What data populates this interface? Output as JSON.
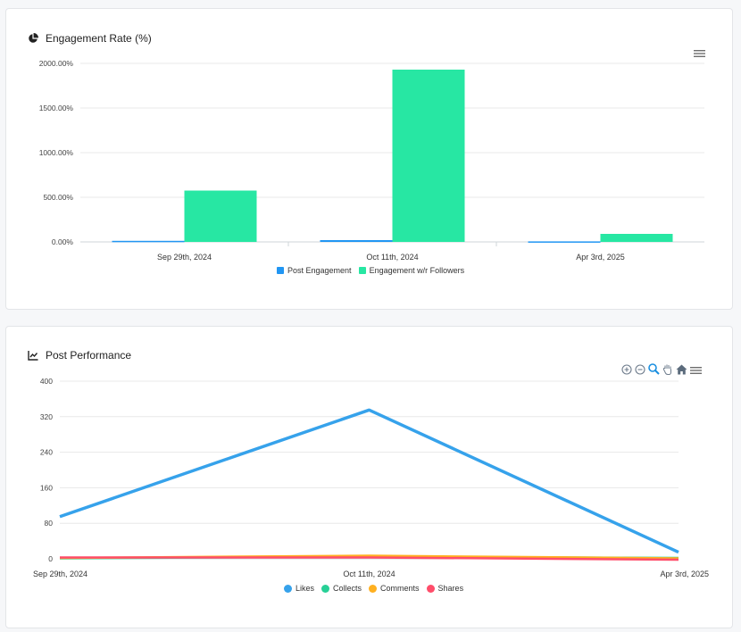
{
  "cards": {
    "engagement": {
      "title": "Engagement Rate (%)",
      "icon": "pie-chart-icon",
      "menu_icon": "hamburger-menu-icon"
    },
    "performance": {
      "title": "Post Performance",
      "icon": "line-chart-icon",
      "toolbar_icons": [
        "zoom-in-icon",
        "zoom-out-icon",
        "zoom-selection-icon",
        "pan-hand-icon",
        "reset-home-icon",
        "hamburger-menu-icon"
      ]
    }
  },
  "chart_data": [
    {
      "type": "bar",
      "title": "Engagement Rate (%)",
      "categories": [
        "Sep 29th, 2024",
        "Oct 11th, 2024",
        "Apr 3rd, 2025"
      ],
      "series": [
        {
          "name": "Post Engagement",
          "color": "#2196f3",
          "values": [
            12,
            20,
            6
          ]
        },
        {
          "name": "Engagement w/r Followers",
          "color": "#27e7a3",
          "values": [
            575,
            1930,
            90
          ]
        }
      ],
      "yticks": [
        "0.00%",
        "500.00%",
        "1000.00%",
        "1500.00%",
        "2000.00%"
      ],
      "ylim": [
        0,
        2000
      ],
      "grid": true,
      "legend": "bottom"
    },
    {
      "type": "line",
      "title": "Post Performance",
      "categories": [
        "Sep 29th, 2024",
        "Oct 11th, 2024",
        "Apr 3rd, 2025"
      ],
      "series": [
        {
          "name": "Likes",
          "color": "#36a2eb",
          "values": [
            95,
            335,
            15
          ]
        },
        {
          "name": "Collects",
          "color": "#27d096",
          "values": [
            1,
            5,
            2
          ]
        },
        {
          "name": "Comments",
          "color": "#ffb020",
          "values": [
            2,
            7,
            1
          ]
        },
        {
          "name": "Shares",
          "color": "#ff4d6a",
          "values": [
            3,
            3,
            -2
          ]
        }
      ],
      "yticks": [
        "0",
        "80",
        "160",
        "240",
        "320",
        "400"
      ],
      "ylim": [
        0,
        400
      ],
      "grid": true,
      "legend": "bottom"
    }
  ]
}
